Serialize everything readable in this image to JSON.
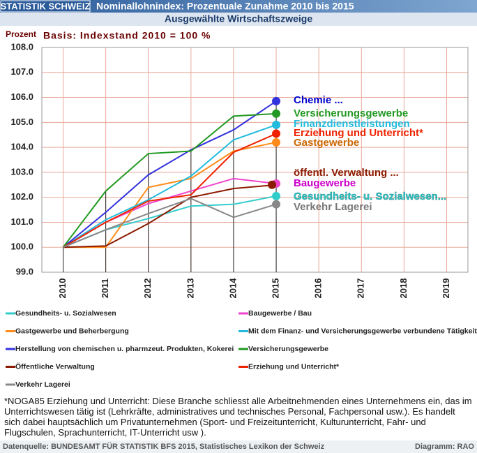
{
  "chart_data": {
    "type": "line",
    "header_left": "STATISTIK SCHWEIZ",
    "title": "Nominallohnindex: Prozentuale Zunahme 2010 bis 2015",
    "subtitle": "Ausgewählte Wirtschaftszweige",
    "y_label": "Prozent",
    "annotation": "Basis: Indexstand 2010 = 100 %",
    "x": [
      2010,
      2011,
      2012,
      2013,
      2014,
      2015
    ],
    "xlim": [
      2009.5,
      2019.5
    ],
    "xticks": [
      2010,
      2011,
      2012,
      2013,
      2014,
      2015,
      2016,
      2017,
      2018,
      2019
    ],
    "ylim": [
      99,
      108
    ],
    "yticks": [
      {
        "value": 99,
        "label": "99.0"
      },
      {
        "value": 100,
        "label": "100.0"
      },
      {
        "value": 101,
        "label": "101.0"
      },
      {
        "value": 102,
        "label": "102.0"
      },
      {
        "value": 103,
        "label": "103.0"
      },
      {
        "value": 104,
        "label": "104.0"
      },
      {
        "value": 105,
        "label": "105.0"
      },
      {
        "value": 106,
        "label": "106.0"
      },
      {
        "value": 107,
        "label": "107.0"
      },
      {
        "value": 108,
        "label": "108.0"
      }
    ],
    "grid": true,
    "series": [
      {
        "name": "Gesundheits- u. Sozialwesen",
        "label": "Gesundheits- u. Sozialwesen...",
        "color": "#33cccc",
        "values": [
          100,
          100.7,
          101.15,
          101.65,
          101.72,
          102.05
        ]
      },
      {
        "name": "Baugewerbe / Bau",
        "label": "Baugewerbe",
        "color": "#ee44cc",
        "values": [
          100,
          101.0,
          101.75,
          102.25,
          102.75,
          102.55
        ]
      },
      {
        "name": "Gastgewerbe und Beherbergung",
        "label": "Gastgewerbe",
        "color": "#ff8c1a",
        "values": [
          100,
          100.0,
          102.4,
          102.75,
          103.85,
          104.2
        ]
      },
      {
        "name": "Mit dem Finanz- und Versicherungsgewerbe verbundene Tätigkeiten",
        "label": "Finanzdienstleistungen",
        "color": "#22bbdd",
        "values": [
          100,
          101.1,
          101.9,
          102.85,
          104.3,
          104.9
        ]
      },
      {
        "name": "Herstellung von chemischen u. pharmzeut. Produkten, Kokerei",
        "label": "Chemie ...",
        "color": "#3333dd",
        "values": [
          100,
          101.4,
          102.9,
          103.9,
          104.7,
          105.85
        ]
      },
      {
        "name": "Versicherungsgewerbe",
        "label": "Versicherungsgewerbe",
        "color": "#229922",
        "values": [
          100,
          102.25,
          103.75,
          103.85,
          105.25,
          105.35
        ]
      },
      {
        "name": "Öffentliche Verwaltung",
        "label": "öffentl. Verwaltung ...",
        "color": "#8b1a00",
        "values": [
          100,
          100.05,
          100.95,
          102.0,
          102.35,
          102.5
        ]
      },
      {
        "name": "Erziehung und Unterricht*",
        "label": "Erziehung und Unterricht*",
        "color": "#ee2200",
        "values": [
          100,
          101.0,
          101.85,
          102.1,
          103.8,
          104.55
        ]
      },
      {
        "name": "Verkehr Lagerei",
        "label": "Verkehr Lagerei",
        "color": "#888888",
        "values": [
          100,
          100.7,
          101.35,
          101.95,
          101.2,
          101.72
        ]
      }
    ]
  },
  "footer": {
    "note": "*NOGA85 Erziehung und Unterricht: Diese Branche schliesst alle Arbeitnehmenden eines Unternehmens ein, das im Unterrichtswesen tätig ist (Lehrkräfte, administratives und technisches Personal, Fachpersonal usw.). Es handelt sich dabei hauptsächlich um Privatunternehmen (Sport- und Freizeitunterricht, Kulturunterricht, Fahr- und Flugschulen, Sprachunterricht, IT-Unterricht usw ).",
    "source": "Datenquelle: BUNDESAMT FÜR STATISTIK BFS 2015, Statistisches Lexikon der Schweiz",
    "credit": "Diagramm: RAO"
  }
}
